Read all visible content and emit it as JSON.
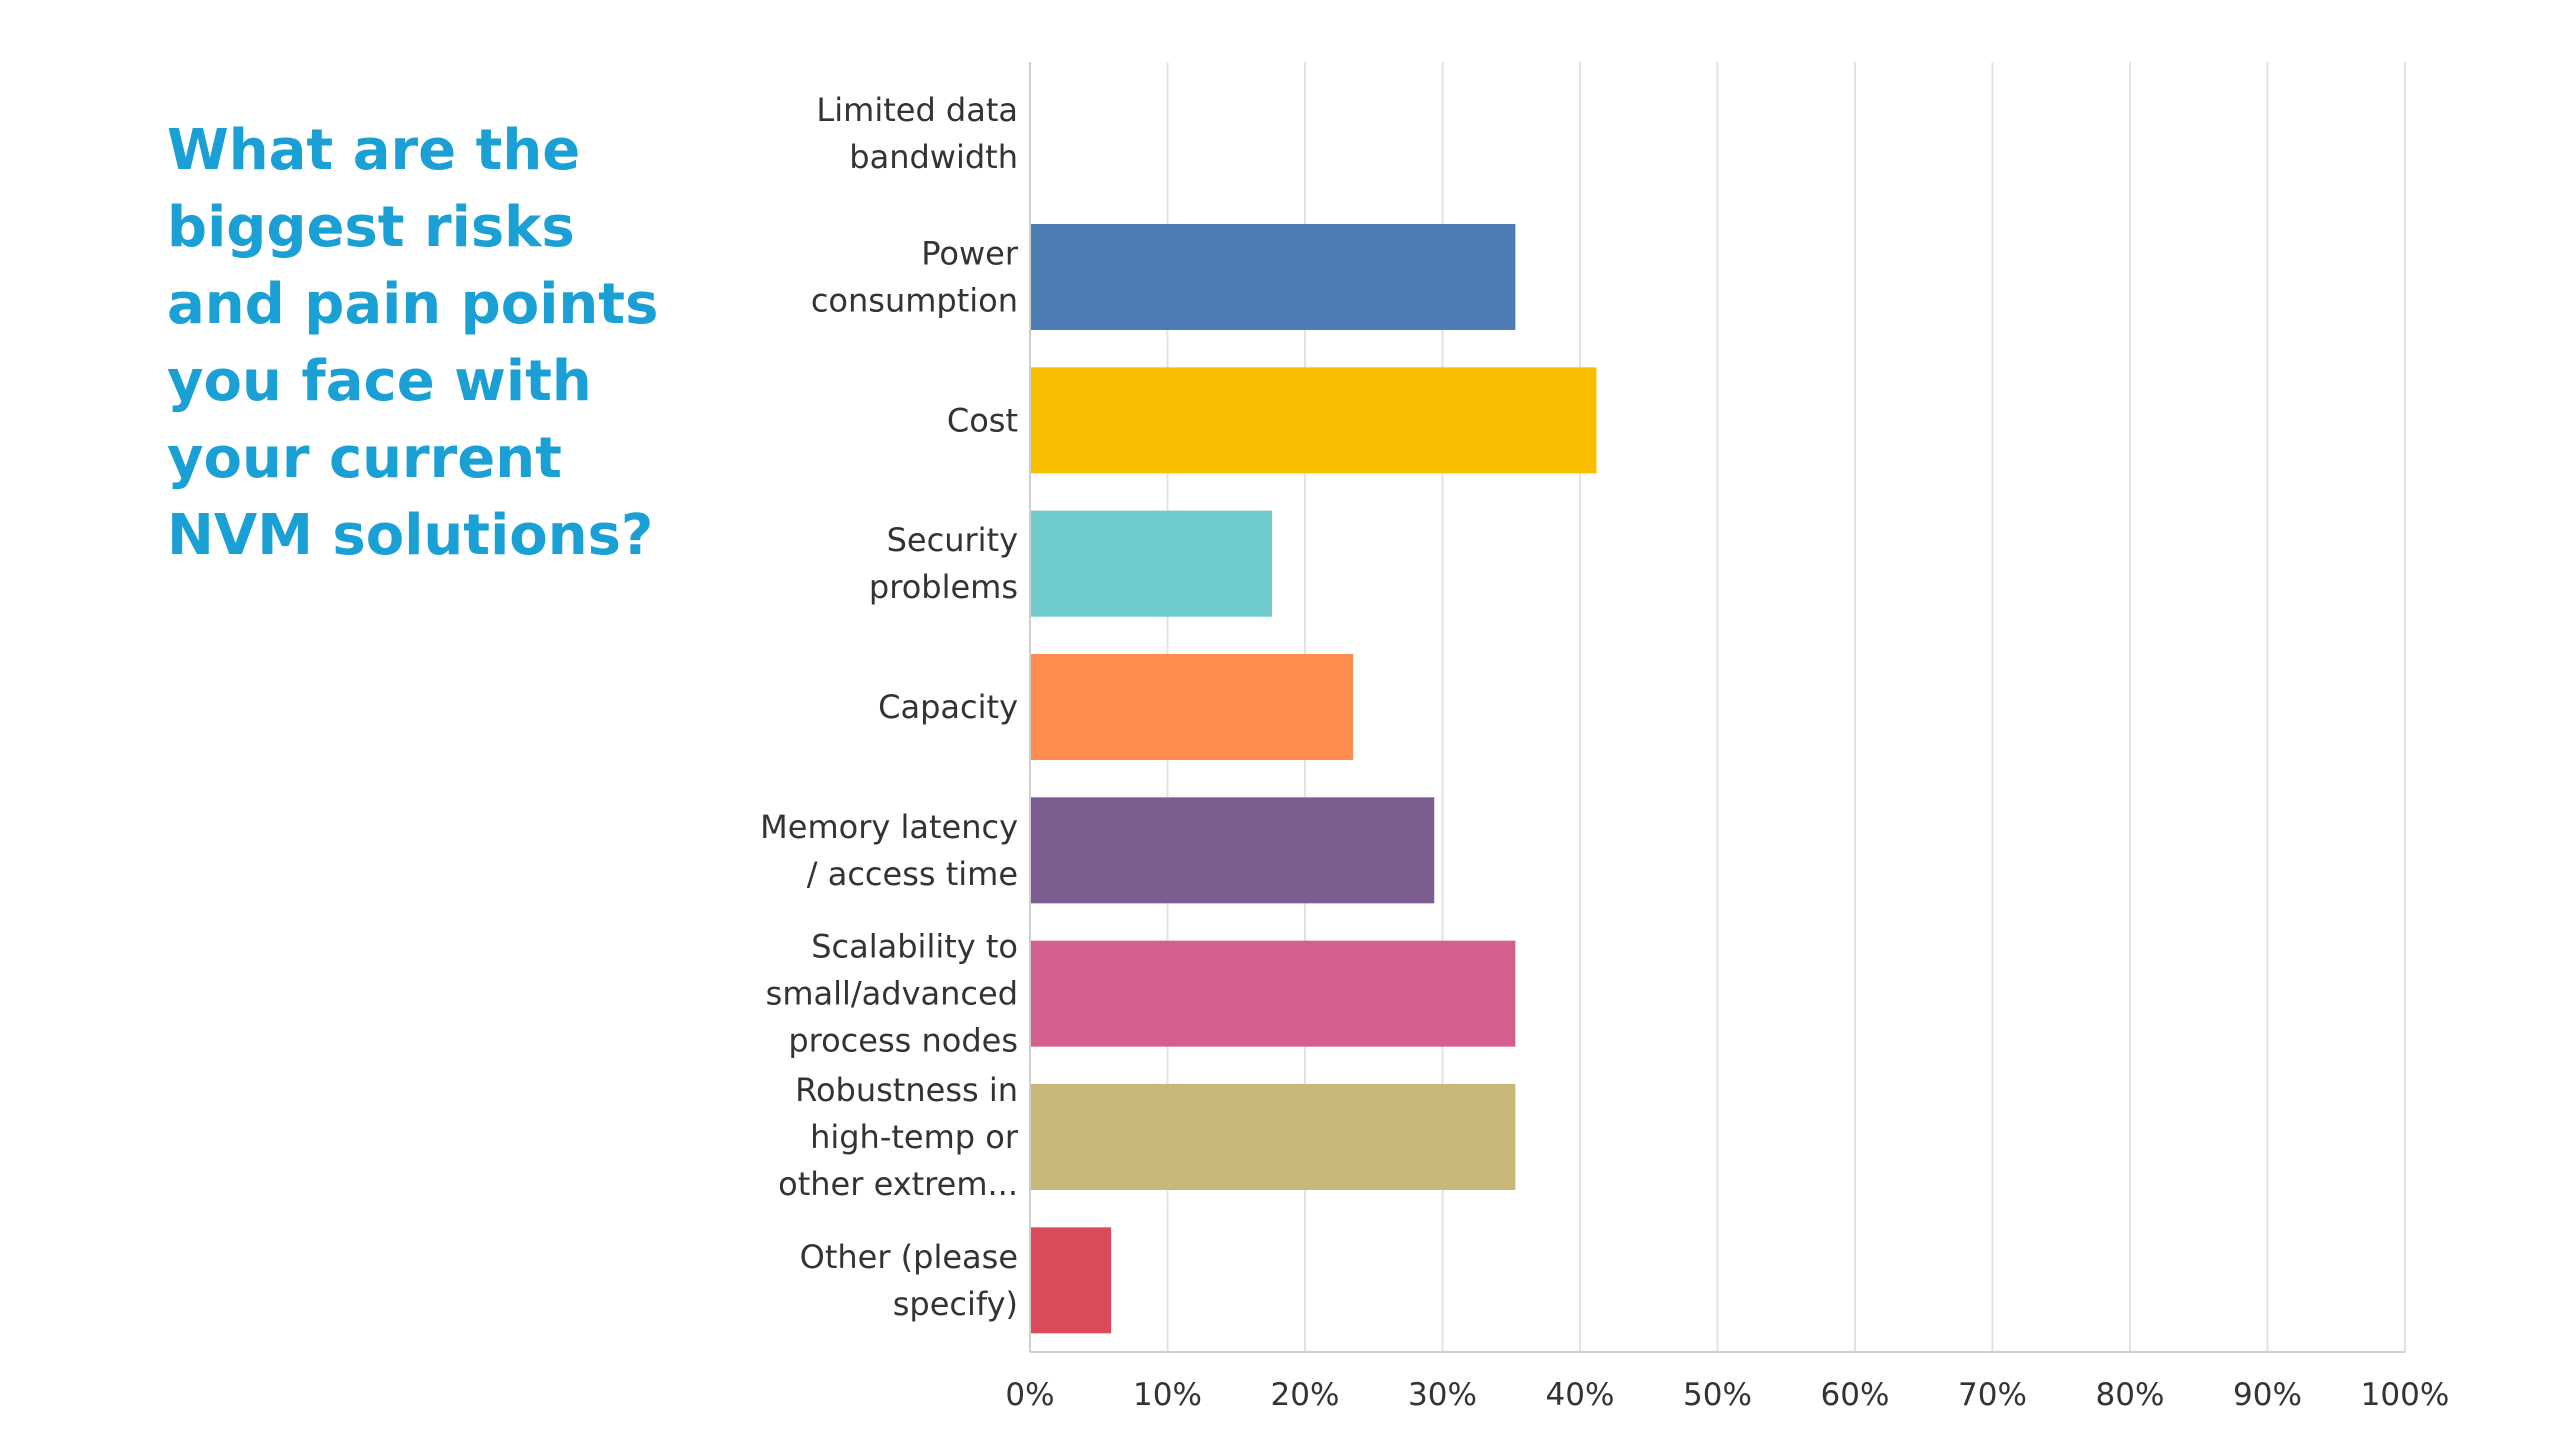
{
  "question": "What are the biggest risks and pain points you face with your current NVM solutions?",
  "chart_data": {
    "type": "bar",
    "orientation": "horizontal",
    "categories": [
      [
        "Limited data",
        "bandwidth"
      ],
      [
        "Power",
        "consumption"
      ],
      [
        "Cost"
      ],
      [
        "Security",
        "problems"
      ],
      [
        "Capacity"
      ],
      [
        "Memory latency",
        "/ access time"
      ],
      [
        "Scalability to",
        "small/advanced",
        "process nodes"
      ],
      [
        "Robustness in",
        "high-temp or",
        "other extrem..."
      ],
      [
        "Other (please",
        "specify)"
      ]
    ],
    "values": [
      0,
      35.3,
      41.2,
      17.6,
      23.5,
      29.4,
      35.3,
      35.3,
      5.9
    ],
    "colors": [
      "#4e7cb4",
      "#4e7cb4",
      "#f7bf00",
      "#6ecacd",
      "#ff8c4f",
      "#7b5e8f",
      "#d45f8f",
      "#c7b87a",
      "#dc4b5a"
    ],
    "xlim": [
      0,
      100
    ],
    "x_ticks": [
      "0%",
      "10%",
      "20%",
      "30%",
      "40%",
      "50%",
      "60%",
      "70%",
      "80%",
      "90%",
      "100%"
    ],
    "grid": true,
    "legend": "none"
  }
}
